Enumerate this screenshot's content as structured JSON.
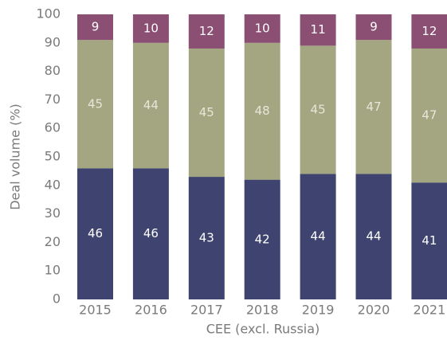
{
  "chart_data": {
    "type": "stacked_bar",
    "y_label": "Deal volume (%)",
    "x_label": "CEE (excl. Russia)",
    "categories": [
      "2015",
      "2016",
      "2017",
      "2018",
      "2019",
      "2020",
      "2021"
    ],
    "series": [
      {
        "color": "#3f436f",
        "label_color": "#ffffff",
        "values": [
          46,
          46,
          43,
          42,
          44,
          44,
          41
        ]
      },
      {
        "color": "#a4a681",
        "label_color": "#e6e6da",
        "values": [
          45,
          44,
          45,
          48,
          45,
          47,
          47
        ]
      },
      {
        "color": "#8a4f72",
        "label_color": "#ffffff",
        "values": [
          9,
          10,
          12,
          10,
          11,
          9,
          12
        ]
      }
    ],
    "ylim": [
      0,
      100
    ],
    "yticks": [
      0,
      10,
      20,
      30,
      40,
      50,
      60,
      70,
      80,
      90,
      100
    ]
  }
}
